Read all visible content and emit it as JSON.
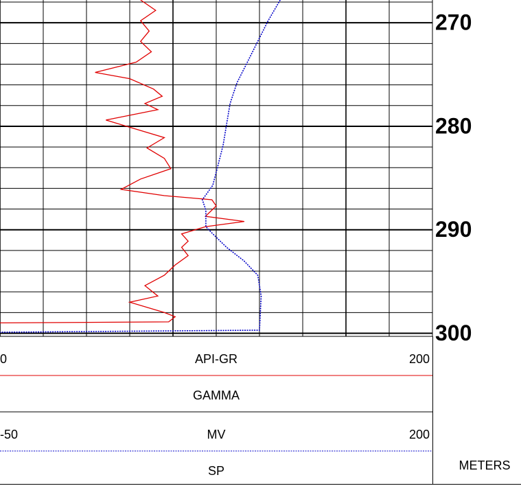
{
  "chart_data": {
    "type": "well-log",
    "y_unit": "METERS",
    "ylim": [
      267.8,
      300.3
    ],
    "yticks": [
      270,
      280,
      290,
      300
    ],
    "minor_yticks": [
      268,
      272,
      274,
      276,
      278,
      282,
      284,
      286,
      288,
      292,
      294,
      296,
      298
    ],
    "xticks": [
      0,
      20,
      40,
      60,
      80,
      100,
      120,
      140,
      160,
      180,
      200
    ],
    "series": [
      {
        "name": "GAMMA",
        "unit": "API-GR",
        "color": "#e00000",
        "line_style": "solid",
        "xlim": [
          0,
          200
        ],
        "depth": [
          267.8,
          268.8,
          269.8,
          270.8,
          271.8,
          272.8,
          273.8,
          274.8,
          275.4,
          276.4,
          277.1,
          277.8,
          278.4,
          279.4,
          280.1,
          281.1,
          282.1,
          283.1,
          284.1,
          285.1,
          286.1,
          286.7,
          287.1,
          287.7,
          288.7,
          289.2,
          289.7,
          290.4,
          291.1,
          291.7,
          292.5,
          293.4,
          294.4,
          295.4,
          296.4,
          297.0,
          298.0,
          298.4,
          298.9,
          299.0
        ],
        "values": [
          65,
          72,
          65,
          69,
          65,
          70,
          63,
          44,
          60,
          71,
          75,
          67,
          73,
          49,
          60,
          76,
          68,
          76,
          79,
          65,
          56,
          76,
          98,
          100,
          95,
          113,
          95,
          84,
          87,
          84,
          87,
          81,
          76,
          67,
          73,
          60,
          76,
          81,
          78,
          0
        ]
      },
      {
        "name": "SP",
        "unit": "MV",
        "color": "#0000c8",
        "line_style": "dotted",
        "xlim": [
          -50,
          200
        ],
        "depth": [
          267.8,
          269.8,
          271.8,
          273.8,
          275.8,
          277.8,
          279.8,
          281.8,
          283.8,
          285.7,
          287.1,
          288.1,
          289.7,
          290.4,
          291.7,
          293.0,
          294.4,
          296.4,
          299.7,
          299.9
        ],
        "values": [
          112,
          105,
          99,
          93,
          87,
          83,
          81,
          79,
          76,
          73,
          67,
          69,
          69,
          73,
          81,
          91,
          99,
          101,
          100,
          -50
        ]
      }
    ]
  }
}
